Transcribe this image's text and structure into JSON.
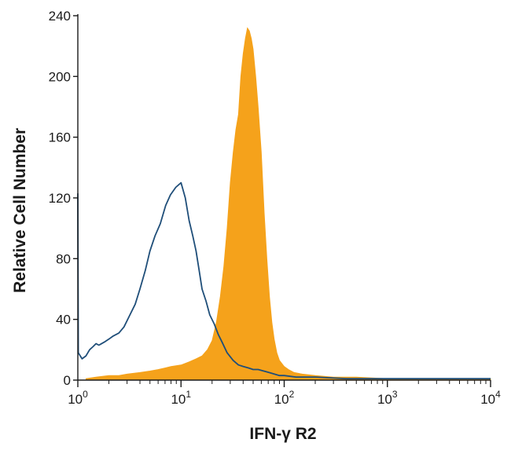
{
  "chart_data": {
    "type": "histogram",
    "xlabel": "IFN-γ R2",
    "ylabel": "Relative Cell Number",
    "x_scale": "log",
    "xlim": [
      1,
      10000
    ],
    "ylim": [
      0,
      240
    ],
    "x_ticks": [
      {
        "value": 1,
        "base": "10",
        "exp": "0"
      },
      {
        "value": 10,
        "base": "10",
        "exp": "1"
      },
      {
        "value": 100,
        "base": "10",
        "exp": "2"
      },
      {
        "value": 1000,
        "base": "10",
        "exp": "3"
      },
      {
        "value": 10000,
        "base": "10",
        "exp": "4"
      }
    ],
    "y_ticks": [
      "0",
      "40",
      "80",
      "120",
      "160",
      "200",
      "240"
    ],
    "grid": false,
    "colors": {
      "filled": "#f5a21b",
      "outline": "#1f4e79"
    },
    "series": [
      {
        "style": "outline",
        "color": "#1f4e79",
        "points": [
          [
            1.0,
            123
          ],
          [
            1.01,
            18
          ],
          [
            1.1,
            14
          ],
          [
            1.2,
            16
          ],
          [
            1.3,
            20
          ],
          [
            1.4,
            22
          ],
          [
            1.5,
            24
          ],
          [
            1.6,
            23
          ],
          [
            1.8,
            25
          ],
          [
            2.0,
            27
          ],
          [
            2.2,
            29
          ],
          [
            2.5,
            31
          ],
          [
            2.8,
            35
          ],
          [
            3.2,
            43
          ],
          [
            3.6,
            50
          ],
          [
            4.0,
            60
          ],
          [
            4.5,
            72
          ],
          [
            5.0,
            85
          ],
          [
            5.6,
            95
          ],
          [
            6.3,
            103
          ],
          [
            7.1,
            115
          ],
          [
            7.9,
            122
          ],
          [
            8.9,
            127
          ],
          [
            10.0,
            130
          ],
          [
            11.0,
            120
          ],
          [
            12.0,
            105
          ],
          [
            13.0,
            95
          ],
          [
            14.0,
            85
          ],
          [
            15.0,
            72
          ],
          [
            16.0,
            60
          ],
          [
            17.5,
            52
          ],
          [
            19.0,
            43
          ],
          [
            21.0,
            37
          ],
          [
            23.0,
            30
          ],
          [
            25.0,
            25
          ],
          [
            28.0,
            18
          ],
          [
            32.0,
            13
          ],
          [
            36.0,
            10
          ],
          [
            40.0,
            9
          ],
          [
            45.0,
            8
          ],
          [
            50.0,
            7
          ],
          [
            56.0,
            7
          ],
          [
            63.0,
            6
          ],
          [
            71.0,
            5
          ],
          [
            80.0,
            4
          ],
          [
            90.0,
            3
          ],
          [
            100.0,
            3
          ],
          [
            130.0,
            2
          ],
          [
            200.0,
            2
          ],
          [
            400.0,
            1
          ],
          [
            1000.0,
            1
          ],
          [
            3000.0,
            1
          ],
          [
            10000.0,
            1
          ]
        ]
      },
      {
        "style": "filled",
        "color": "#f5a21b",
        "points": [
          [
            1.2,
            1
          ],
          [
            1.5,
            2
          ],
          [
            2.0,
            3
          ],
          [
            2.5,
            3
          ],
          [
            3.0,
            4
          ],
          [
            4.0,
            5
          ],
          [
            5.0,
            6
          ],
          [
            6.0,
            7
          ],
          [
            7.0,
            8
          ],
          [
            8.0,
            9
          ],
          [
            10.0,
            10
          ],
          [
            12.0,
            12
          ],
          [
            14.0,
            14
          ],
          [
            16.0,
            16
          ],
          [
            18.0,
            20
          ],
          [
            20.0,
            26
          ],
          [
            22.0,
            38
          ],
          [
            24.0,
            55
          ],
          [
            26.0,
            75
          ],
          [
            28.0,
            100
          ],
          [
            30.0,
            130
          ],
          [
            32.0,
            150
          ],
          [
            34.0,
            165
          ],
          [
            36.0,
            175
          ],
          [
            38.0,
            200
          ],
          [
            40.0,
            215
          ],
          [
            42.0,
            225
          ],
          [
            44.0,
            232
          ],
          [
            46.0,
            230
          ],
          [
            48.0,
            225
          ],
          [
            50.0,
            218
          ],
          [
            53.0,
            200
          ],
          [
            56.0,
            180
          ],
          [
            60.0,
            150
          ],
          [
            64.0,
            110
          ],
          [
            68.0,
            80
          ],
          [
            72.0,
            55
          ],
          [
            76.0,
            38
          ],
          [
            80.0,
            27
          ],
          [
            85.0,
            18
          ],
          [
            90.0,
            13
          ],
          [
            100.0,
            9
          ],
          [
            110.0,
            7
          ],
          [
            125.0,
            5
          ],
          [
            150.0,
            4
          ],
          [
            200.0,
            3
          ],
          [
            300.0,
            2
          ],
          [
            500.0,
            2
          ],
          [
            1000.0,
            1
          ],
          [
            3000.0,
            1
          ],
          [
            10000.0,
            1
          ]
        ]
      }
    ]
  }
}
